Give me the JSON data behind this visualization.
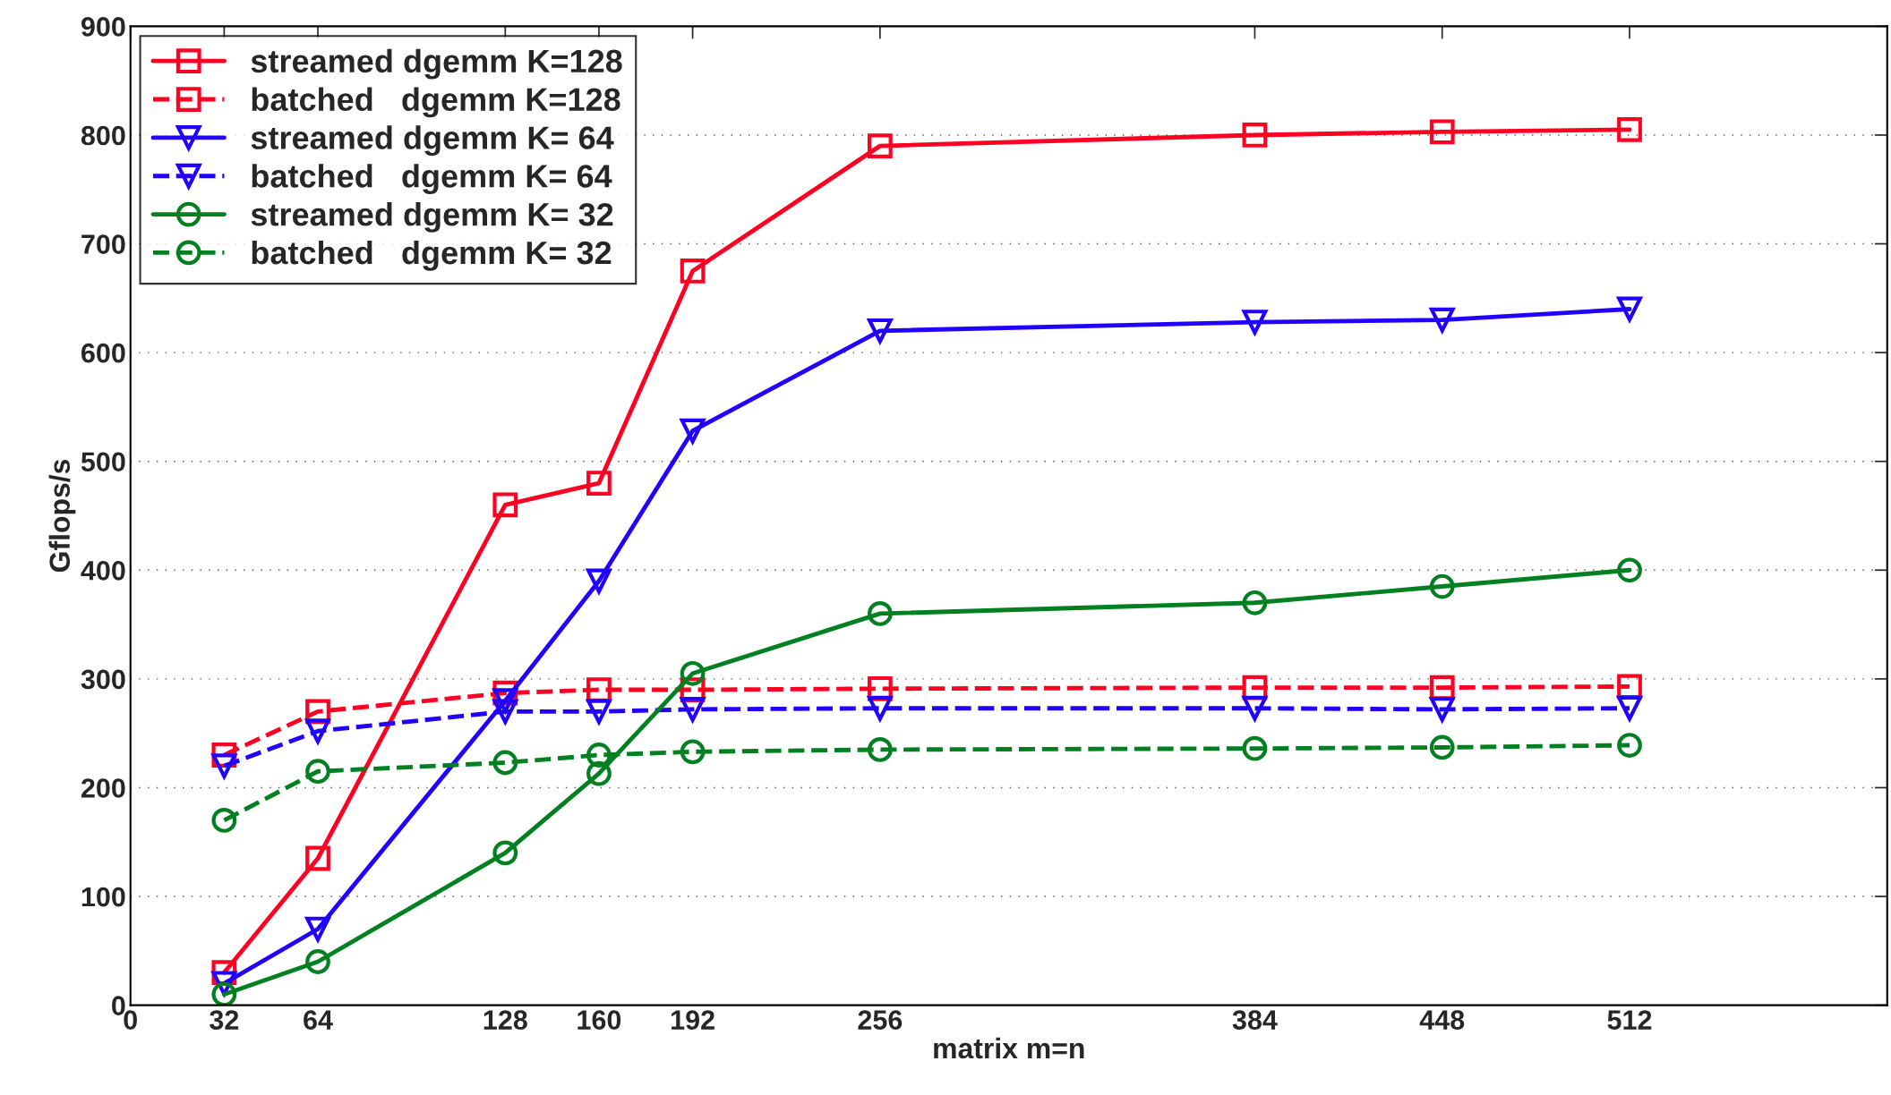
{
  "chart_data": {
    "type": "line",
    "xlabel": "matrix m=n",
    "ylabel": "Gflops/s",
    "x": [
      32,
      64,
      128,
      160,
      192,
      256,
      384,
      448,
      512
    ],
    "series": [
      {
        "name": "streamed dgemm K=128",
        "color": "#ff0022",
        "marker": "square",
        "line_style": "solid",
        "values": [
          30,
          135,
          460,
          480,
          675,
          790,
          800,
          803,
          805
        ]
      },
      {
        "name": "batched   dgemm K=128",
        "color": "#ff0022",
        "marker": "square",
        "line_style": "dashed",
        "values": [
          230,
          270,
          287,
          290,
          290,
          291,
          292,
          292,
          293
        ]
      },
      {
        "name": "streamed dgemm K= 64",
        "color": "#2200ff",
        "marker": "triangle",
        "line_style": "solid",
        "values": [
          20,
          70,
          280,
          390,
          528,
          620,
          628,
          630,
          640
        ]
      },
      {
        "name": "batched   dgemm K= 64",
        "color": "#2200ff",
        "marker": "triangle",
        "line_style": "dashed",
        "values": [
          220,
          252,
          270,
          270,
          272,
          273,
          273,
          272,
          273
        ]
      },
      {
        "name": "streamed dgemm K= 32",
        "color": "#008020",
        "marker": "circle",
        "line_style": "solid",
        "values": [
          10,
          40,
          140,
          213,
          305,
          360,
          370,
          385,
          400
        ]
      },
      {
        "name": "batched   dgemm K= 32",
        "color": "#008020",
        "marker": "circle",
        "line_style": "dashed",
        "values": [
          170,
          215,
          223,
          230,
          233,
          235,
          236,
          237,
          239
        ]
      }
    ],
    "xlim": [
      0,
      600
    ],
    "xticks": [
      0,
      32,
      64,
      128,
      160,
      192,
      256,
      384,
      448,
      512
    ],
    "ylim": [
      0,
      900
    ],
    "yticks": [
      0,
      100,
      200,
      300,
      400,
      500,
      600,
      700,
      800,
      900
    ],
    "grid": "y",
    "legend": "top left"
  }
}
